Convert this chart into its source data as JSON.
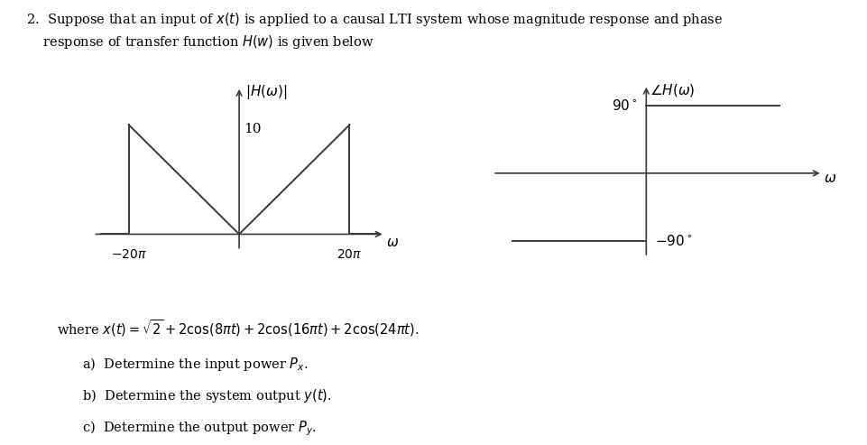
{
  "title_line1": "2.  Suppose that an input of $x(t)$ is applied to a causal LTI system whose magnitude response and phase",
  "title_line2": "    response of transfer function $H(w)$ is given below",
  "mag_ylabel": "$|H(\\omega)|$",
  "mag_xlabel": "$\\omega$",
  "phase_ylabel": "$\\angle H(\\omega)$",
  "phase_xlabel": "$\\omega$",
  "mag_10_label": "10",
  "mag_minus20pi_label": "$-20\\pi$",
  "mag_plus20pi_label": "$20\\pi$",
  "phase_90_label": "$90^\\circ$",
  "phase_minus90_label": "$-90^\\circ$",
  "formula_line": "where $x(t) = \\sqrt{2} + 2\\cos(8\\pi t) + 2\\cos(16\\pi t) + 2\\cos(24\\pi t)$.",
  "part_a": "a)  Determine the input power $P_x$.",
  "part_b": "b)  Determine the system output $y(t)$.",
  "part_c": "c)  Determine the output power $P_y$.",
  "line_color": "#3a3a3a",
  "text_color": "#000000",
  "bg_color": "#ffffff"
}
